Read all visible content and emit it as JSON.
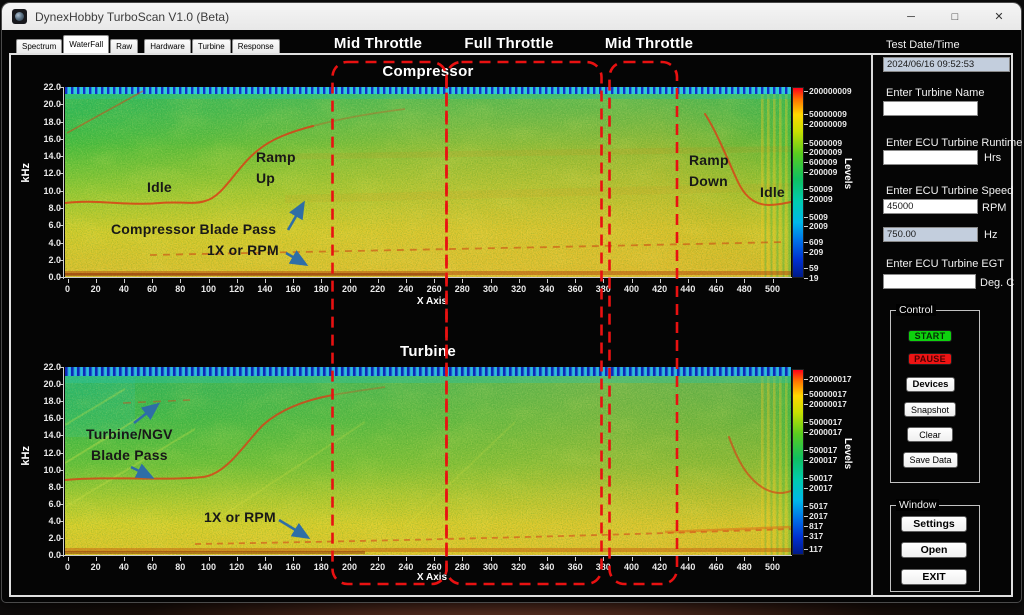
{
  "window": {
    "title": "DynexHobby TurboScan V1.0 (Beta)",
    "controls": {
      "minimize": "─",
      "maximize": "□",
      "close": "✕"
    }
  },
  "tabs": {
    "items": [
      "Spectrum",
      "WaterFall",
      "Raw",
      "Hardware",
      "Turbine",
      "Response"
    ],
    "active": "WaterFall"
  },
  "throttle_labels": [
    "Mid Throttle",
    "Full Throttle",
    "Mid Throttle"
  ],
  "charts": {
    "compressor": {
      "title": "Compressor",
      "ylabel": "kHz",
      "xlabel": "X Axis",
      "colorbar_title": "Levels",
      "yticks": [
        "22.0",
        "20.0",
        "18.0",
        "16.0",
        "14.0",
        "12.0",
        "10.0",
        "8.0",
        "6.0",
        "4.0",
        "2.0",
        "0.0"
      ],
      "xticks": [
        "0",
        "20",
        "40",
        "60",
        "80",
        "100",
        "120",
        "140",
        "160",
        "180",
        "200",
        "220",
        "240",
        "260",
        "280",
        "300",
        "320",
        "340",
        "360",
        "380",
        "400",
        "420",
        "440",
        "460",
        "480",
        "500"
      ],
      "colorbar_labels": [
        "200000009",
        "50000009",
        "20000009",
        "5000009",
        "2000009",
        "600009",
        "200009",
        "50009",
        "20009",
        "5009",
        "2009",
        "609",
        "209",
        "59",
        "19"
      ],
      "annotations": {
        "idle_left": "Idle",
        "ramp_up_line1": "Ramp",
        "ramp_up_line2": "Up",
        "blade_pass": "Compressor Blade Pass",
        "rpm_1x": "1X or RPM",
        "ramp_down_line1": "Ramp",
        "ramp_down_line2": "Down",
        "idle_right": "Idle"
      }
    },
    "turbine": {
      "title": "Turbine",
      "ylabel": "kHz",
      "xlabel": "X Axis",
      "colorbar_title": "Levels",
      "yticks": [
        "22.0",
        "20.0",
        "18.0",
        "16.0",
        "14.0",
        "12.0",
        "10.0",
        "8.0",
        "6.0",
        "4.0",
        "2.0",
        "0.0"
      ],
      "xticks": [
        "0",
        "20",
        "40",
        "60",
        "80",
        "100",
        "120",
        "140",
        "160",
        "180",
        "200",
        "220",
        "240",
        "260",
        "280",
        "300",
        "320",
        "340",
        "360",
        "380",
        "400",
        "420",
        "440",
        "460",
        "480",
        "500"
      ],
      "colorbar_labels": [
        "200000017",
        "50000017",
        "20000017",
        "5000017",
        "2000017",
        "500017",
        "200017",
        "50017",
        "20017",
        "5017",
        "2017",
        "817",
        "317",
        "117"
      ],
      "annotations": {
        "blade_pass_line1": "Turbine/NGV",
        "blade_pass_line2": "Blade Pass",
        "rpm_1x": "1X or RPM"
      }
    }
  },
  "sidebar": {
    "test_datetime_label": "Test Date/Time",
    "test_datetime_value": "2024/06/16 09:52:53",
    "turbine_name_label": "Enter Turbine Name",
    "turbine_name_value": "",
    "runtime_label": "Enter ECU Turbine Runtime",
    "runtime_value": "",
    "runtime_unit": "Hrs",
    "speed_label": "Enter ECU Turbine Speed",
    "speed_value": "45000",
    "speed_unit": "RPM",
    "speed_hz_value": "750.00",
    "speed_hz_unit": "Hz",
    "egt_label": "Enter ECU Turbine EGT",
    "egt_value": "",
    "egt_unit": "Deg. C",
    "control_group": {
      "label": "Control",
      "buttons": [
        {
          "label": "START",
          "style": "start"
        },
        {
          "label": "PAUSE",
          "style": "pause"
        },
        {
          "label": "Devices",
          "style": "bold"
        },
        {
          "label": "Snapshot",
          "style": "plain"
        },
        {
          "label": "Clear",
          "style": "plain"
        },
        {
          "label": "Save Data",
          "style": "plain"
        }
      ]
    },
    "window_group": {
      "label": "Window",
      "buttons": [
        {
          "label": "Settings"
        },
        {
          "label": "Open"
        },
        {
          "label": "EXIT"
        }
      ]
    }
  },
  "colors": {
    "annotation_box_red": "#e81111",
    "start_green": "#0ed10e",
    "pause_red": "#ee1414",
    "arrow_blue": "#2e6ea6",
    "trace_red": "#d93f16"
  }
}
